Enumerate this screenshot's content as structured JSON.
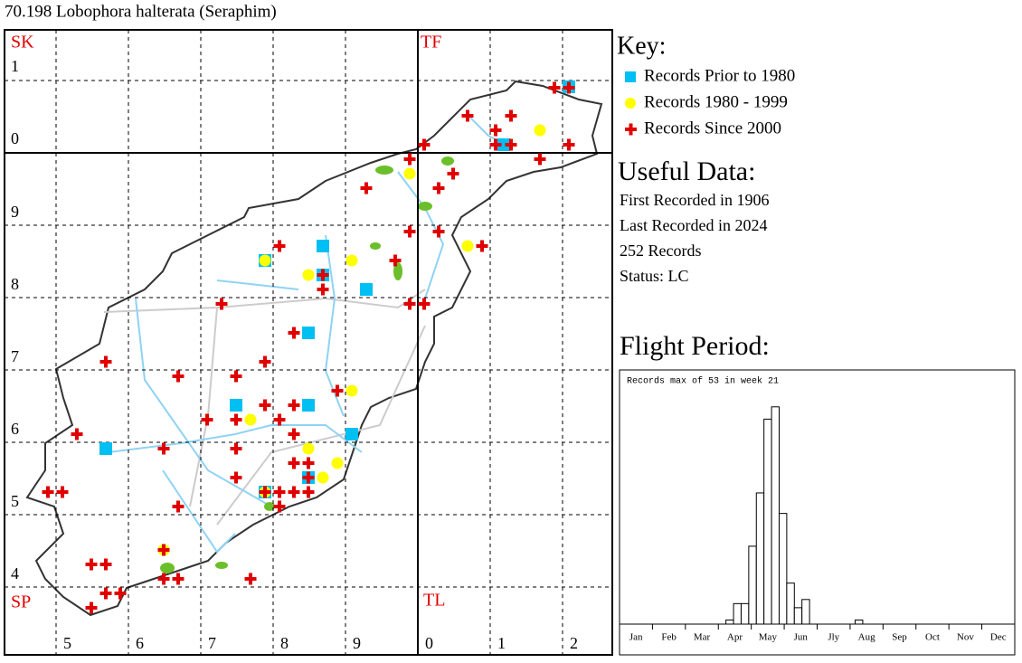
{
  "header": {
    "title": "70.198 Lobophora halterata (Seraphim)"
  },
  "map": {
    "squares": [
      "SK",
      "TF",
      "SP",
      "TL"
    ],
    "row_labels": [
      1,
      0,
      9,
      8,
      7,
      6,
      5,
      4
    ],
    "column_labels": [
      5,
      6,
      7,
      8,
      9,
      0,
      1,
      2
    ]
  },
  "key": {
    "heading": "Key:",
    "items": [
      "Records Prior to 1980",
      "Records 1980 - 1999",
      "Records Since 2000"
    ]
  },
  "useful_data": {
    "heading": "Useful Data:",
    "lines": [
      "First Recorded in 1906",
      "Last Recorded in 2024",
      "252 Records",
      "Status: LC"
    ]
  },
  "flight_period": {
    "heading": "Flight Period:"
  },
  "chart_data": {
    "type": "bar",
    "title": "Records max of 53 in week 21",
    "x": [
      1,
      2,
      3,
      4,
      5,
      6,
      7,
      8,
      9,
      10,
      11,
      12,
      13,
      14,
      15,
      16,
      17,
      18,
      19,
      20,
      21,
      22,
      23,
      24,
      25,
      26,
      27,
      28,
      29,
      30,
      31,
      32,
      33,
      34,
      35,
      36,
      37,
      38,
      39,
      40,
      41,
      42,
      43,
      44,
      45,
      46,
      47,
      48,
      49,
      50,
      51,
      52
    ],
    "values": [
      0,
      0,
      0,
      0,
      0,
      0,
      0,
      0,
      0,
      0,
      0,
      0,
      0,
      0,
      1,
      5,
      5,
      19,
      32,
      50,
      53,
      27,
      10,
      4,
      6,
      0,
      0,
      0,
      0,
      0,
      0,
      1,
      0,
      0,
      0,
      0,
      0,
      0,
      0,
      0,
      0,
      0,
      0,
      0,
      0,
      0,
      0,
      0,
      0,
      0,
      0,
      0
    ],
    "xlim": [
      0.5,
      52.5
    ],
    "ylim": [
      0,
      62
    ],
    "xticks": [
      {
        "value": 2.67,
        "label": "Jan"
      },
      {
        "value": 7,
        "label": "Feb"
      },
      {
        "value": 11.33,
        "label": "Mar"
      },
      {
        "value": 15.67,
        "label": "Apr"
      },
      {
        "value": 20,
        "label": "May"
      },
      {
        "value": 24.33,
        "label": "Jun"
      },
      {
        "value": 28.67,
        "label": "Jly"
      },
      {
        "value": 33,
        "label": "Aug"
      },
      {
        "value": 37.33,
        "label": "Sep"
      },
      {
        "value": 41.67,
        "label": "Oct"
      },
      {
        "value": 46,
        "label": "Nov"
      },
      {
        "value": 50.33,
        "label": "Dec"
      }
    ],
    "color": "#ffffff"
  }
}
